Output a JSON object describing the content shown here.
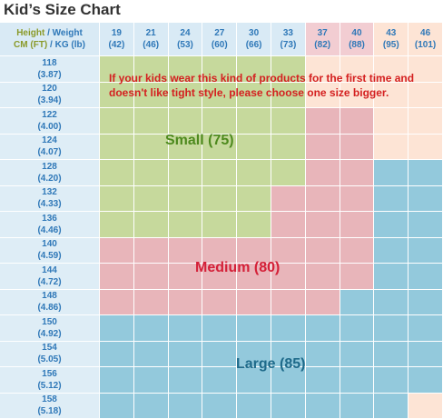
{
  "title": "Kid’s Size Chart",
  "header": {
    "label": {
      "height": "Height",
      "weight": "/ Weight",
      "height_unit": "CM (FT)",
      "weight_unit": "/ KG (lb)"
    },
    "columns": [
      [
        "19",
        "(42)"
      ],
      [
        "21",
        "(46)"
      ],
      [
        "24",
        "(53)"
      ],
      [
        "27",
        "(60)"
      ],
      [
        "30",
        "(66)"
      ],
      [
        "33",
        "(73)"
      ],
      [
        "37",
        "(82)"
      ],
      [
        "40",
        "(88)"
      ],
      [
        "43",
        "(95)"
      ],
      [
        "46",
        "(101)"
      ]
    ]
  },
  "rows": [
    [
      "118",
      "(3.87)"
    ],
    [
      "120",
      "(3.94)"
    ],
    [
      "122",
      "(4.00)"
    ],
    [
      "124",
      "(4.07)"
    ],
    [
      "128",
      "(4.20)"
    ],
    [
      "132",
      "(4.33)"
    ],
    [
      "136",
      "(4.46)"
    ],
    [
      "140",
      "(4.59)"
    ],
    [
      "144",
      "(4.72)"
    ],
    [
      "148",
      "(4.86)"
    ],
    [
      "150",
      "(4.92)"
    ],
    [
      "154",
      "(5.05)"
    ],
    [
      "156",
      "(5.12)"
    ],
    [
      "158",
      "(5.18)"
    ]
  ],
  "note": [
    "If your kids wear this kind of products for the first time and",
    "doesn't like tight style, please choose one size bigger."
  ],
  "zones": {
    "small": "Small (75)",
    "medium": "Medium (80)",
    "large": "Large (85)"
  }
}
